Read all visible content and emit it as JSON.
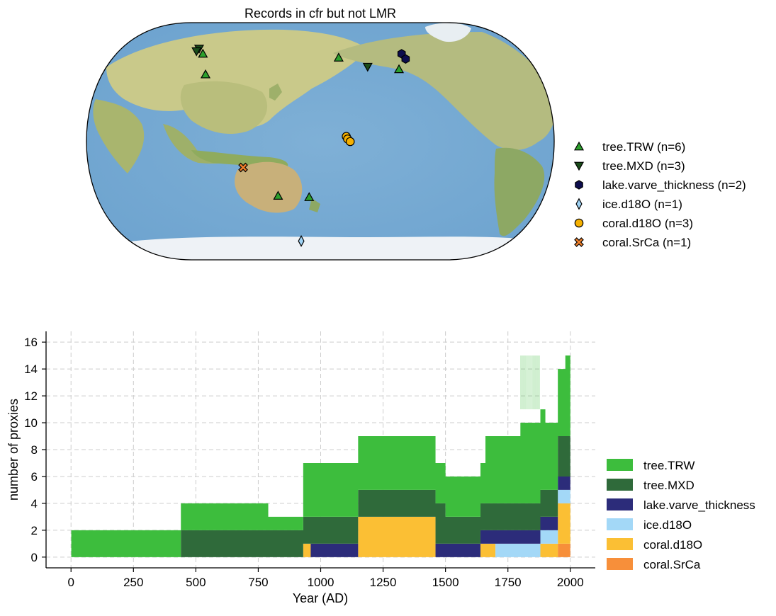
{
  "map_panel": {
    "title": "Records in cfr but not LMR",
    "legend": [
      {
        "label": "tree.TRW (n=6)",
        "marker": "triangle-up",
        "color": "#2ca02c"
      },
      {
        "label": "tree.MXD (n=3)",
        "marker": "triangle-down",
        "color": "#1a4d1a"
      },
      {
        "label": "lake.varve_thickness (n=2)",
        "marker": "hexagon",
        "color": "#0d0d4d"
      },
      {
        "label": "ice.d18O (n=1)",
        "marker": "diamond",
        "color": "#9fd3f5"
      },
      {
        "label": "coral.d18O (n=3)",
        "marker": "circle",
        "color": "#f5b000"
      },
      {
        "label": "coral.SrCa (n=1)",
        "marker": "x",
        "color": "#f07f2a"
      }
    ],
    "records": [
      {
        "type": "tree.TRW",
        "lat": 68,
        "lon": 76
      },
      {
        "type": "tree.TRW",
        "lat": 52,
        "lon": 85
      },
      {
        "type": "tree.TRW",
        "lat": 65,
        "lon": 196
      },
      {
        "type": "tree.TRW",
        "lat": 56,
        "lon": 246
      },
      {
        "type": "tree.TRW",
        "lat": -42,
        "lon": 146
      },
      {
        "type": "tree.TRW",
        "lat": -43,
        "lon": 171
      },
      {
        "type": "tree.MXD",
        "lat": 72,
        "lon": 70
      },
      {
        "type": "tree.MXD",
        "lat": 70,
        "lon": 69
      },
      {
        "type": "tree.MXD",
        "lat": 58,
        "lon": 220
      },
      {
        "type": "lake.varve_thickness",
        "lat": 68,
        "lon": 252
      },
      {
        "type": "lake.varve_thickness",
        "lat": 64,
        "lon": 254
      },
      {
        "type": "ice.d18O",
        "lat": -77,
        "lon": 162
      },
      {
        "type": "coral.d18O",
        "lat": 4,
        "lon": 200
      },
      {
        "type": "coral.d18O",
        "lat": 2,
        "lon": 201
      },
      {
        "type": "coral.d18O",
        "lat": 0,
        "lon": 203
      },
      {
        "type": "coral.SrCa",
        "lat": -20,
        "lon": 120
      }
    ]
  },
  "chart_data": {
    "type": "area",
    "stacked": true,
    "xlabel": "Year (AD)",
    "ylabel": "number of proxies",
    "xlim": [
      -100,
      2100
    ],
    "ylim": [
      -0.8,
      16.8
    ],
    "xticks": [
      0,
      250,
      500,
      750,
      1000,
      1250,
      1500,
      1750,
      2000
    ],
    "yticks": [
      0,
      2,
      4,
      6,
      8,
      10,
      12,
      14,
      16
    ],
    "grid": true,
    "legend_position": "right",
    "series": [
      {
        "name": "tree.TRW",
        "color": "#3dbd3d",
        "steps": [
          [
            1,
            2
          ],
          [
            440,
            2
          ],
          [
            760,
            2
          ],
          [
            790,
            1
          ],
          [
            910,
            1
          ],
          [
            930,
            4
          ],
          [
            1000,
            4
          ],
          [
            1150,
            4
          ],
          [
            1460,
            3
          ],
          [
            1490,
            3
          ],
          [
            1580,
            3
          ],
          [
            1660,
            5
          ],
          [
            1700,
            5
          ],
          [
            1800,
            6
          ],
          [
            1900,
            5
          ],
          [
            1980,
            6
          ],
          [
            2000,
            null
          ]
        ]
      },
      {
        "name": "tree.MXD",
        "color": "#2f6a3a",
        "steps": [
          [
            1,
            0
          ],
          [
            440,
            2
          ],
          [
            760,
            2
          ],
          [
            850,
            2
          ],
          [
            930,
            2
          ],
          [
            1000,
            2
          ],
          [
            1150,
            2
          ],
          [
            1460,
            3
          ],
          [
            1500,
            2
          ],
          [
            1600,
            2
          ],
          [
            1700,
            2
          ],
          [
            1800,
            2
          ],
          [
            1900,
            2
          ],
          [
            1950,
            3
          ],
          [
            2000,
            null
          ]
        ]
      },
      {
        "name": "lake.varve_thickness",
        "color": "#2c2c7a",
        "steps": [
          [
            1,
            0
          ],
          [
            960,
            1
          ],
          [
            1150,
            0
          ],
          [
            1460,
            1
          ],
          [
            1640,
            1
          ],
          [
            1700,
            1
          ],
          [
            1900,
            1
          ],
          [
            2000,
            null
          ]
        ]
      },
      {
        "name": "ice.d18O",
        "color": "#a3d8f7",
        "steps": [
          [
            1,
            0
          ],
          [
            1700,
            1
          ],
          [
            1900,
            1
          ],
          [
            2000,
            null
          ]
        ]
      },
      {
        "name": "coral.d18O",
        "color": "#fbbf34",
        "steps": [
          [
            1,
            0
          ],
          [
            930,
            1
          ],
          [
            960,
            0
          ],
          [
            1150,
            3
          ],
          [
            1460,
            0
          ],
          [
            1640,
            1
          ],
          [
            1700,
            0
          ],
          [
            1880,
            1
          ],
          [
            1950,
            3
          ],
          [
            2000,
            null
          ]
        ]
      },
      {
        "name": "coral.SrCa",
        "color": "#f78f3a",
        "steps": [
          [
            1,
            0
          ],
          [
            1950,
            1
          ],
          [
            2000,
            null
          ]
        ]
      }
    ]
  }
}
